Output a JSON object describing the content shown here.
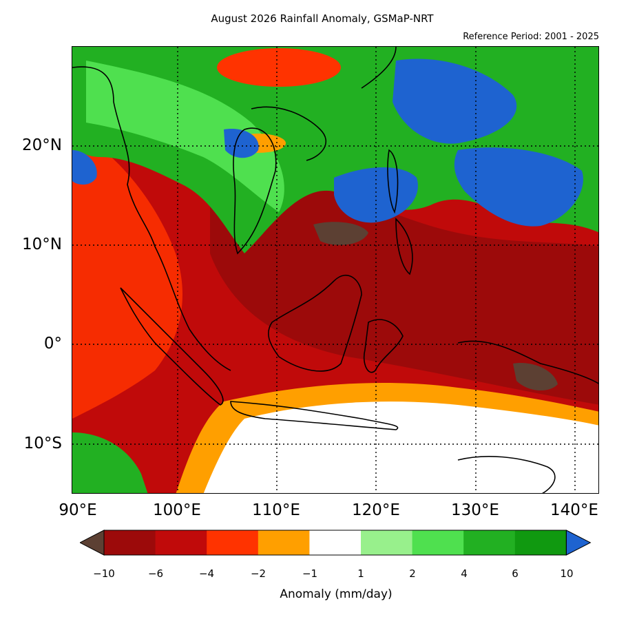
{
  "title": "August 2026 Rainfall Anomaly, GSMaP-NRT",
  "subtitle": "Reference Period: 2001 - 2025",
  "map": {
    "lon_range": [
      90,
      140
    ],
    "lat_range": [
      -15,
      30
    ],
    "gridlines": "dotted",
    "lon_ticks": [
      "90°E",
      "100°E",
      "110°E",
      "120°E",
      "130°E",
      "140°E"
    ],
    "lat_ticks": [
      "20°N",
      "10°N",
      "0°",
      "10°S"
    ]
  },
  "colorbar": {
    "label": "Anomaly (mm/day)",
    "ticks": [
      "−10",
      "−6",
      "−4",
      "−2",
      "−1",
      "1",
      "2",
      "4",
      "6",
      "10"
    ],
    "bins": [
      {
        "range": "< -10",
        "color": "#5c4033"
      },
      {
        "range": "-10 to -6",
        "color": "#9c0a0a"
      },
      {
        "range": "-6 to -4",
        "color": "#c00a0a"
      },
      {
        "range": "-4 to -2",
        "color": "#ff3300"
      },
      {
        "range": "-2 to -1",
        "color": "#ff9f00"
      },
      {
        "range": "-1 to 1",
        "color": "#ffffff"
      },
      {
        "range": "1 to 2",
        "color": "#98f08c"
      },
      {
        "range": "2 to 4",
        "color": "#4fe04f"
      },
      {
        "range": "4 to 6",
        "color": "#22b022"
      },
      {
        "range": "6 to 10",
        "color": "#109910"
      },
      {
        "range": "> 10",
        "color": "#1e63d0"
      }
    ]
  }
}
